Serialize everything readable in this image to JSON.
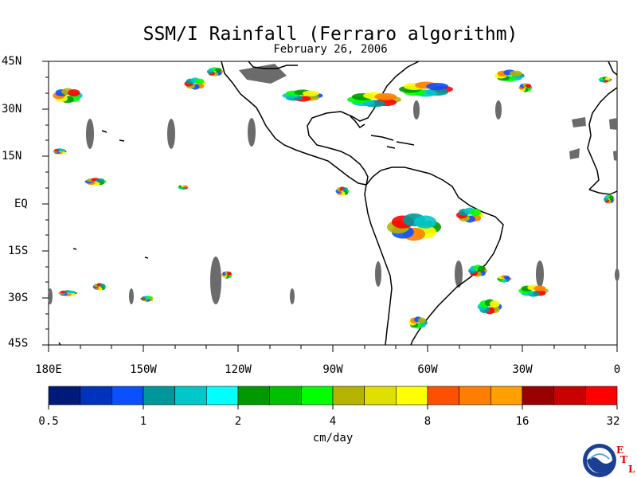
{
  "title": "SSM/I Rainfall (Ferraro algorithm)",
  "subtitle": "February 26, 2006",
  "latitude_labels": [
    "45N",
    "30N",
    "15N",
    "EQ",
    "15S",
    "30S",
    "45S"
  ],
  "longitude_labels": [
    "180E",
    "150W",
    "120W",
    "90W",
    "60W",
    "30W",
    "0"
  ],
  "colorbar": {
    "unit": "cm/day",
    "tick_labels": [
      "0.5",
      "1",
      "2",
      "4",
      "8",
      "16",
      "32"
    ],
    "colors": [
      "#001a7a",
      "#0033bb",
      "#0a50ff",
      "#00979a",
      "#00c8c8",
      "#00ffff",
      "#009900",
      "#00c000",
      "#00ff00",
      "#b4b400",
      "#e0e000",
      "#ffff00",
      "#ff5000",
      "#ff7d00",
      "#ffa000",
      "#9a0000",
      "#c80000",
      "#ff0000"
    ]
  },
  "logo": {
    "name": "NOAA",
    "letters": [
      "E",
      "T",
      "L"
    ]
  },
  "colors": {
    "land_outline": "#000000",
    "missing_swath": "#6b6b6b",
    "background": "#ffffff"
  }
}
